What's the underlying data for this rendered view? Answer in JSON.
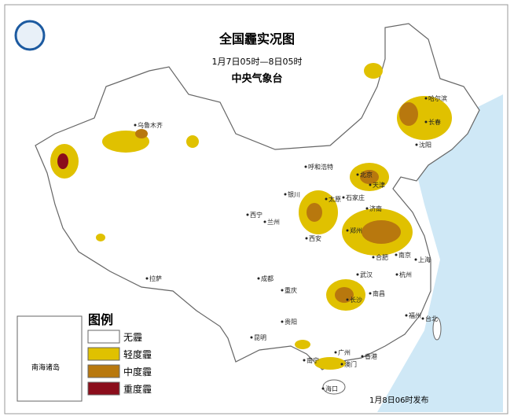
{
  "header": {
    "title": "全国霾实况图",
    "subtitle": "1月7日05时—8日05时",
    "agency": "中央气象台"
  },
  "legend": {
    "title": "图例",
    "items": [
      "无霾",
      "轻度霾",
      "中度霾",
      "重度霾"
    ]
  },
  "cities": [
    "乌鲁木齐",
    "哈尔滨",
    "长春",
    "沈阳",
    "呼和浩特",
    "北京",
    "天津",
    "石家庄",
    "太原",
    "银川",
    "西宁",
    "兰州",
    "济南",
    "郑州",
    "西安",
    "合肥",
    "南京",
    "上海",
    "杭州",
    "武汉",
    "成都",
    "重庆",
    "长沙",
    "南昌",
    "福州",
    "贵阳",
    "昆明",
    "拉萨",
    "南宁",
    "广州",
    "澳门",
    "香港",
    "海口",
    "台北"
  ],
  "inset": "南海诸岛",
  "footer": "1月8日06时发布"
}
